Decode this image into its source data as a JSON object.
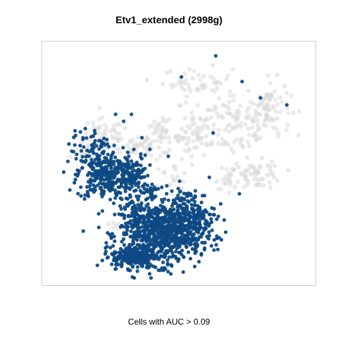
{
  "chart_data": {
    "type": "scatter",
    "title": "Etv1_extended (2998g)",
    "xlabel": "Cells with AUC > 0.09",
    "ylabel": "",
    "grid": false,
    "axes_ticks": false,
    "xlim": [
      0,
      100
    ],
    "ylim": [
      0,
      100
    ],
    "colors": {
      "background_cells": "#d9d9d9",
      "highlighted_cells": "#0e4a84",
      "frame": "#cfcfcf"
    },
    "series": [
      {
        "name": "",
        "role": "background",
        "regions": [
          {
            "cx": 56,
            "cy": 62,
            "rx": 5,
            "ry": 8,
            "n": 45
          },
          {
            "cx": 70,
            "cy": 67,
            "rx": 14,
            "ry": 12,
            "n": 120
          },
          {
            "cx": 84,
            "cy": 74,
            "rx": 7,
            "ry": 10,
            "n": 70
          },
          {
            "cx": 57,
            "cy": 85,
            "rx": 11,
            "ry": 5,
            "n": 45
          },
          {
            "cx": 43,
            "cy": 61,
            "rx": 6,
            "ry": 6,
            "n": 50
          },
          {
            "cx": 34,
            "cy": 58,
            "rx": 7,
            "ry": 5,
            "n": 35
          },
          {
            "cx": 22,
            "cy": 62,
            "rx": 8,
            "ry": 6,
            "n": 45
          },
          {
            "cx": 15,
            "cy": 55,
            "rx": 4,
            "ry": 4,
            "n": 20
          },
          {
            "cx": 80,
            "cy": 45,
            "rx": 8,
            "ry": 5,
            "n": 55
          },
          {
            "cx": 70,
            "cy": 44,
            "rx": 5,
            "ry": 4,
            "n": 20
          },
          {
            "cx": 47,
            "cy": 44,
            "rx": 6,
            "ry": 5,
            "n": 18
          },
          {
            "cx": 26,
            "cy": 24,
            "rx": 2,
            "ry": 2,
            "n": 6
          }
        ]
      },
      {
        "name": "",
        "role": "highlighted",
        "regions": [
          {
            "cx": 22,
            "cy": 45,
            "rx": 9,
            "ry": 9,
            "n": 300
          },
          {
            "cx": 33,
            "cy": 45,
            "rx": 5,
            "ry": 7,
            "n": 90
          },
          {
            "cx": 43,
            "cy": 20,
            "rx": 13,
            "ry": 11,
            "n": 650
          },
          {
            "cx": 33,
            "cy": 10,
            "rx": 7,
            "ry": 4,
            "n": 220
          },
          {
            "cx": 53,
            "cy": 26,
            "rx": 9,
            "ry": 11,
            "n": 260
          },
          {
            "cx": 33,
            "cy": 27,
            "rx": 5,
            "ry": 6,
            "n": 70
          },
          {
            "cx": 17,
            "cy": 58,
            "rx": 7,
            "ry": 5,
            "n": 45
          },
          {
            "cx": 39,
            "cy": 38,
            "rx": 3,
            "ry": 4,
            "n": 25
          }
        ],
        "outliers": [
          [
            64,
            96
          ],
          [
            51,
            87
          ],
          [
            74,
            85
          ],
          [
            81,
            78
          ],
          [
            91,
            75
          ],
          [
            32,
            71
          ],
          [
            26,
            71
          ],
          [
            18,
            64
          ],
          [
            11,
            52
          ],
          [
            10,
            55
          ],
          [
            36,
            61
          ],
          [
            39,
            56
          ],
          [
            46,
            53
          ],
          [
            73,
            37
          ],
          [
            63,
            63
          ],
          [
            29,
            68
          ]
        ]
      }
    ]
  }
}
